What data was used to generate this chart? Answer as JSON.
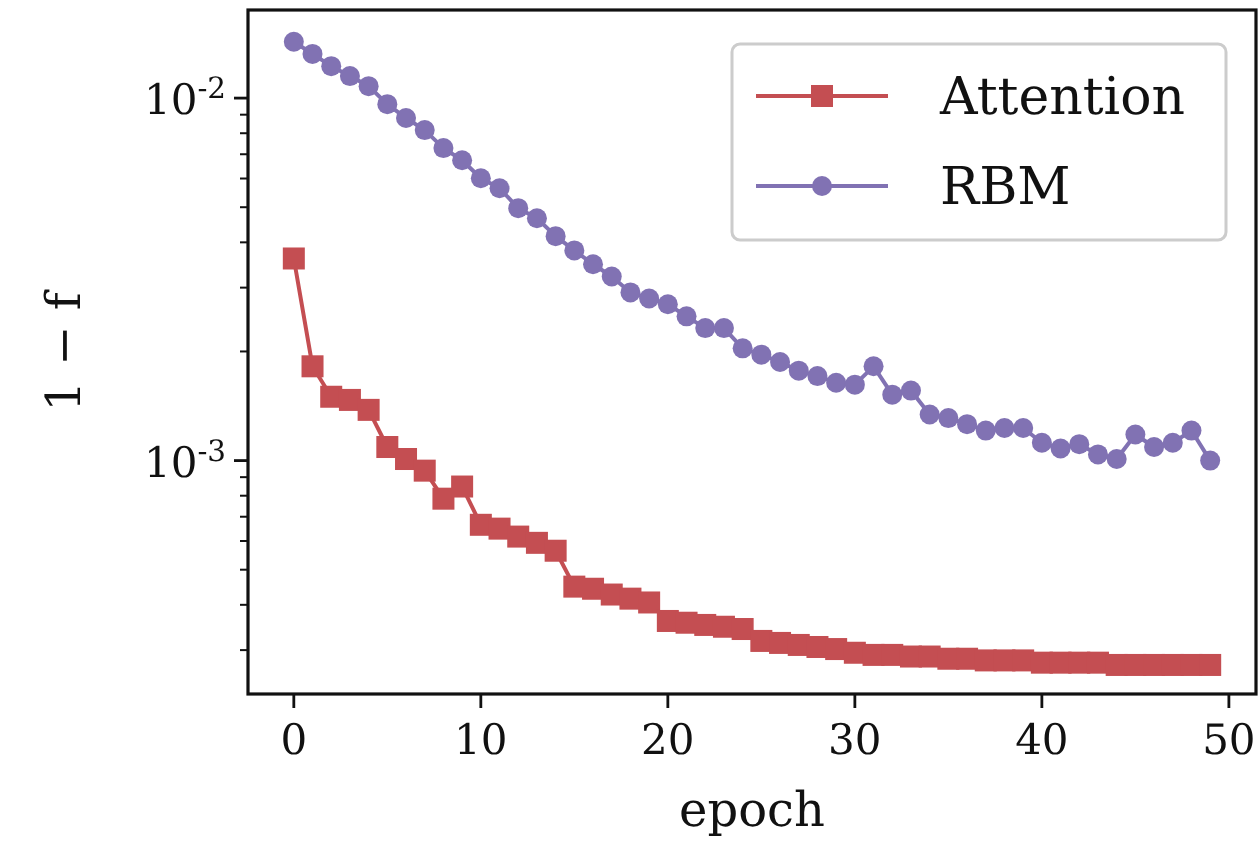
{
  "chart_data": {
    "type": "line",
    "xlabel": "epoch",
    "ylabel": "1 − f",
    "log": "y",
    "grid": false,
    "legend": "top right",
    "xlim": [
      -2.45,
      51.45
    ],
    "xticks": [
      0,
      10,
      20,
      30,
      40,
      50
    ],
    "ylim": [
      0.000227,
      0.0175
    ],
    "yticks": [
      {
        "value": 0.0003,
        "label": null
      },
      {
        "value": 0.0004,
        "label": null
      },
      {
        "value": 0.0005,
        "label": null
      },
      {
        "value": 0.0006,
        "label": null
      },
      {
        "value": 0.0007,
        "label": null
      },
      {
        "value": 0.0008,
        "label": null
      },
      {
        "value": 0.0009,
        "label": null
      },
      {
        "value": 0.001,
        "label": "10$^{-3}$"
      },
      {
        "value": 0.002,
        "label": null
      },
      {
        "value": 0.003,
        "label": null
      },
      {
        "value": 0.004,
        "label": null
      },
      {
        "value": 0.005,
        "label": null
      },
      {
        "value": 0.006,
        "label": null
      },
      {
        "value": 0.007,
        "label": null
      },
      {
        "value": 0.008,
        "label": null
      },
      {
        "value": 0.009,
        "label": null
      },
      {
        "value": 0.01,
        "label": "10$^{-2}$"
      }
    ],
    "x": [
      0,
      1,
      2,
      3,
      4,
      5,
      6,
      7,
      8,
      9,
      10,
      11,
      12,
      13,
      14,
      15,
      16,
      17,
      18,
      19,
      20,
      21,
      22,
      23,
      24,
      25,
      26,
      27,
      28,
      29,
      30,
      31,
      32,
      33,
      34,
      35,
      36,
      37,
      38,
      39,
      40,
      41,
      42,
      43,
      44,
      45,
      46,
      47,
      48,
      49
    ],
    "series": [
      {
        "name": "Attention",
        "color": "#c44e52",
        "marker": "square",
        "values": [
          0.00361,
          0.00182,
          0.0015,
          0.00147,
          0.00138,
          0.00109,
          0.00101,
          0.000938,
          0.000785,
          0.000848,
          0.000665,
          0.000649,
          0.000617,
          0.000593,
          0.000564,
          0.000449,
          0.000443,
          0.000427,
          0.000416,
          0.000406,
          0.000361,
          0.000357,
          0.000352,
          0.000348,
          0.000343,
          0.000318,
          0.000314,
          0.00031,
          0.000306,
          0.000302,
          0.000295,
          0.000291,
          0.000291,
          0.000288,
          0.000288,
          0.000284,
          0.000284,
          0.000281,
          0.000281,
          0.000281,
          0.000277,
          0.000277,
          0.000277,
          0.000277,
          0.000273,
          0.000273,
          0.000273,
          0.000273,
          0.000273,
          0.000273
        ]
      },
      {
        "name": "RBM",
        "color": "#8172b3",
        "marker": "circle",
        "values": [
          0.0143,
          0.01324,
          0.01225,
          0.0115,
          0.01079,
          0.00962,
          0.00881,
          0.00816,
          0.00728,
          0.00674,
          0.00601,
          0.00564,
          0.00497,
          0.00466,
          0.00416,
          0.0038,
          0.00348,
          0.00322,
          0.00291,
          0.0028,
          0.0027,
          0.0025,
          0.00232,
          0.00232,
          0.00204,
          0.00196,
          0.00187,
          0.00177,
          0.00171,
          0.00164,
          0.00162,
          0.00182,
          0.00152,
          0.00156,
          0.00134,
          0.00131,
          0.00126,
          0.00121,
          0.00123,
          0.00123,
          0.00112,
          0.00108,
          0.00111,
          0.00104,
          0.00101,
          0.00118,
          0.00109,
          0.00112,
          0.00121,
          0.001
        ]
      }
    ]
  }
}
